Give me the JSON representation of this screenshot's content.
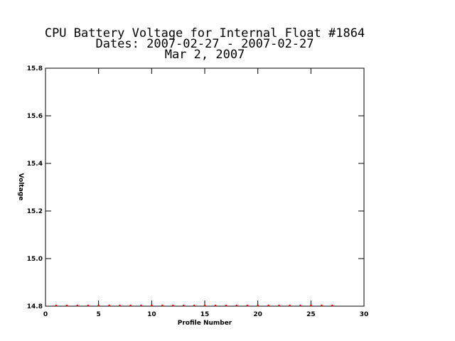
{
  "chart_data": {
    "type": "scatter",
    "title": [
      "CPU Battery Voltage for Internal Float #1864",
      "Dates:  2007-02-27 -  2007-02-27",
      "Mar  2, 2007"
    ],
    "x_label": "Profile Number",
    "y_label": "Voltage",
    "x": [
      1,
      2,
      3,
      4,
      5,
      6,
      7,
      8,
      9,
      10,
      11,
      12,
      13,
      14,
      15,
      16,
      17,
      18,
      19,
      20,
      21,
      22,
      23,
      24,
      25,
      26,
      27
    ],
    "values": [
      14.8,
      14.8,
      14.8,
      14.8,
      14.8,
      14.8,
      14.8,
      14.8,
      14.8,
      14.8,
      14.8,
      14.8,
      14.8,
      14.8,
      14.8,
      14.8,
      14.8,
      14.8,
      14.8,
      14.8,
      14.8,
      14.8,
      14.8,
      14.8,
      14.8,
      14.8,
      14.8
    ],
    "color": "#ff0000",
    "xlim": [
      0,
      30
    ],
    "ylim": [
      14.8,
      15.8
    ],
    "xticks": [
      0,
      5,
      10,
      15,
      20,
      25,
      30
    ],
    "yticks": [
      14.8,
      {
        "value": 15,
        "label": "15.0"
      },
      15.2,
      15.4,
      15.6,
      15.8
    ]
  }
}
